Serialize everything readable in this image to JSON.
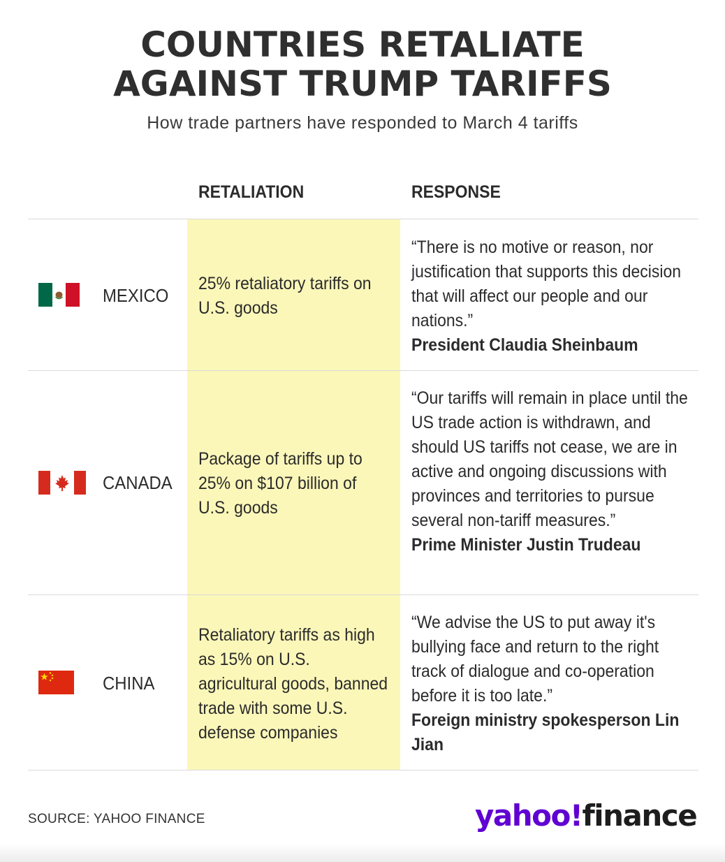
{
  "title_line1": "COUNTRIES RETALIATE",
  "title_line2": "AGAINST TRUMP TARIFFS",
  "subtitle": "How trade partners have responded to March 4 tariffs",
  "headers": {
    "retaliation": "RETALIATION",
    "response": "RESPONSE"
  },
  "rows": [
    {
      "country": "MEXICO",
      "flag": "mexico-flag-icon",
      "retaliation": "25% retaliatory tariffs on U.S. goods",
      "quote": "“There is no motive or reason, nor justification that supports this decision that will affect our people and our nations.”",
      "speaker": "President Claudia Sheinbaum"
    },
    {
      "country": "CANADA",
      "flag": "canada-flag-icon",
      "retaliation": "Package of tariffs up to 25% on $107 billion of U.S. goods",
      "quote": "“Our tariffs will remain in place until the US trade action is withdrawn, and should US tariffs not cease, we are in active and ongoing discussions with provinces and territories to pursue several non-tariff measures.”",
      "speaker": "Prime Minister Justin Trudeau"
    },
    {
      "country": "CHINA",
      "flag": "china-flag-icon",
      "retaliation": "Retaliatory tariffs as high as 15% on U.S. agricultural goods, banned trade with some U.S. defense companies",
      "quote": "“We advise the US to put away it's bullying face and return to the right track of dialogue and co-operation before it is too late.”",
      "speaker": "Foreign ministry spokesperson Lin Jian"
    }
  ],
  "source": "SOURCE: YAHOO FINANCE",
  "logo": {
    "yahoo": "yahoo!",
    "finance": "finance",
    "brand_color": "#6001d2"
  },
  "highlight_color": "#fbf7b9"
}
